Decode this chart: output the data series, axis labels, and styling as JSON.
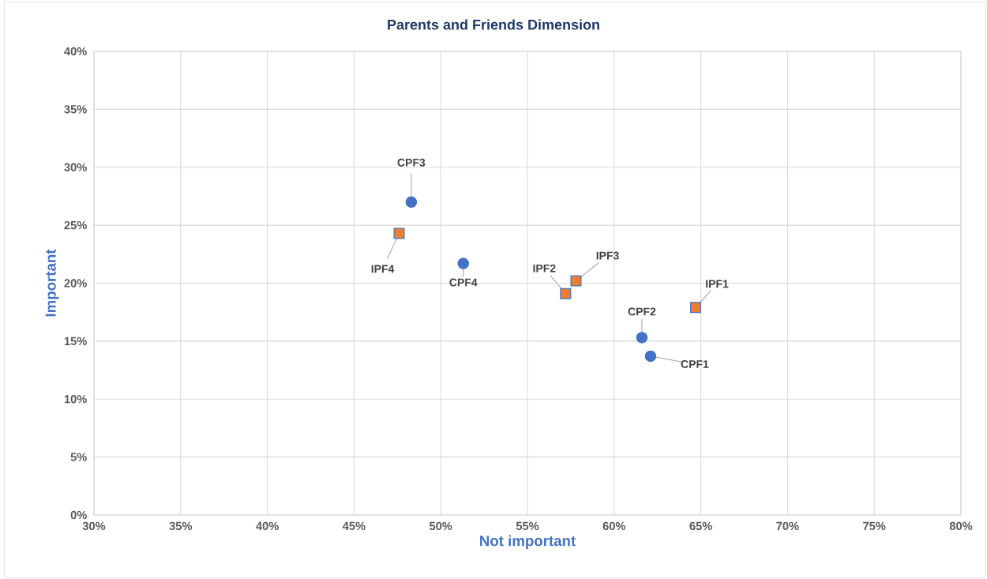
{
  "chart_data": {
    "type": "scatter",
    "title": "Parents and Friends Dimension",
    "xlabel": "Not important",
    "ylabel": "Important",
    "series": [
      {
        "color": "#4472c4",
        "marker": "circle",
        "x": [
          62.1,
          61.6,
          48.3,
          51.3
        ],
        "values": [
          13.7,
          15.3,
          27.0,
          21.7
        ]
      },
      {
        "color": "#ed7d31",
        "marker": "square",
        "x": [
          64.7,
          57.2,
          57.8,
          47.6
        ],
        "values": [
          17.9,
          19.1,
          20.2,
          24.3
        ]
      }
    ],
    "annotations": [
      {
        "text": "CPF1",
        "x": 62.1,
        "y": 13.7
      },
      {
        "text": "CPF2",
        "x": 61.6,
        "y": 15.3
      },
      {
        "text": "CPF3",
        "x": 48.3,
        "y": 27.0
      },
      {
        "text": "CPF4",
        "x": 51.3,
        "y": 21.7
      },
      {
        "text": "IPF1",
        "x": 64.7,
        "y": 17.9
      },
      {
        "text": "IPF2",
        "x": 57.2,
        "y": 19.1
      },
      {
        "text": "IPF3",
        "x": 57.8,
        "y": 20.2
      },
      {
        "text": "IPF4",
        "x": 47.6,
        "y": 24.3
      }
    ],
    "xlim": [
      30,
      80
    ],
    "xticks": [
      {
        "value": 30,
        "label": "30%"
      },
      {
        "value": 35,
        "label": "35%"
      },
      {
        "value": 40,
        "label": "40%"
      },
      {
        "value": 45,
        "label": "45%"
      },
      {
        "value": 50,
        "label": "50%"
      },
      {
        "value": 55,
        "label": "55%"
      },
      {
        "value": 60,
        "label": "60%"
      },
      {
        "value": 65,
        "label": "65%"
      },
      {
        "value": 70,
        "label": "70%"
      },
      {
        "value": 75,
        "label": "75%"
      },
      {
        "value": 80,
        "label": "80%"
      }
    ],
    "ylim": [
      0,
      40
    ],
    "yticks": [
      {
        "value": 0,
        "label": "0%"
      },
      {
        "value": 5,
        "label": "5%"
      },
      {
        "value": 10,
        "label": "10%"
      },
      {
        "value": 15,
        "label": "15%"
      },
      {
        "value": 20,
        "label": "20%"
      },
      {
        "value": 25,
        "label": "25%"
      },
      {
        "value": 30,
        "label": "30%"
      },
      {
        "value": 35,
        "label": "35%"
      },
      {
        "value": 40,
        "label": "40%"
      }
    ],
    "grid": true
  }
}
